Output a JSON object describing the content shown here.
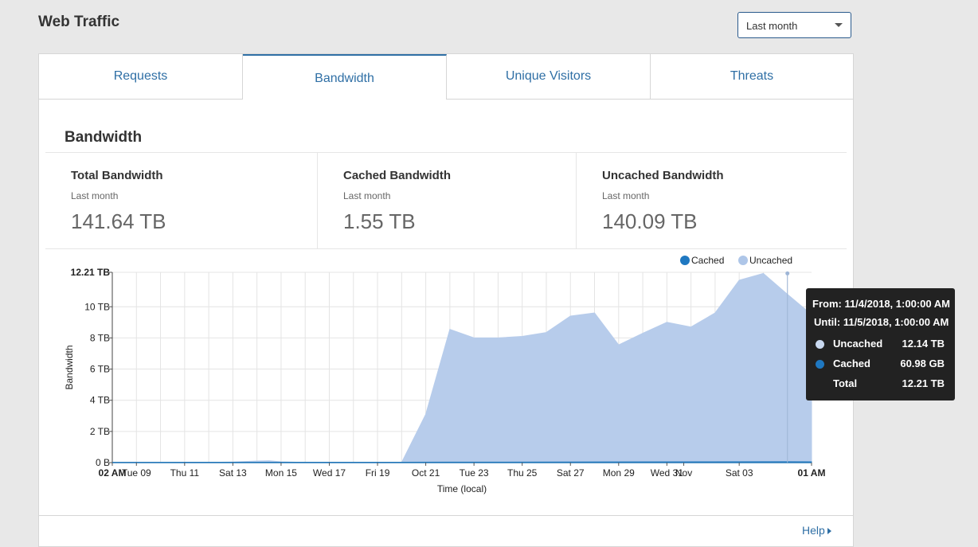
{
  "page": {
    "title": "Web Traffic"
  },
  "range_select": {
    "value": "Last month"
  },
  "tabs": [
    {
      "label": "Requests",
      "active": false
    },
    {
      "label": "Bandwidth",
      "active": true
    },
    {
      "label": "Unique Visitors",
      "active": false
    },
    {
      "label": "Threats",
      "active": false
    }
  ],
  "section": {
    "title": "Bandwidth"
  },
  "stats": [
    {
      "name": "Total Bandwidth",
      "period": "Last month",
      "value": "141.64 TB"
    },
    {
      "name": "Cached Bandwidth",
      "period": "Last month",
      "value": "1.55 TB"
    },
    {
      "name": "Uncached Bandwidth",
      "period": "Last month",
      "value": "140.09 TB"
    }
  ],
  "help": {
    "label": "Help"
  },
  "colors": {
    "accent": "#2f6fa5",
    "cached": "#1f78c1",
    "uncached": "#aec6e8",
    "uncached_fill": "#b7cceb"
  },
  "chart_data": {
    "type": "area",
    "xlabel": "Time (local)",
    "ylabel": "Bandwidth",
    "ylim": [
      0,
      12.21
    ],
    "y_unit": "TB",
    "y_ticks": [
      {
        "value": 0,
        "label": "0 B"
      },
      {
        "value": 2,
        "label": "2 TB"
      },
      {
        "value": 4,
        "label": "4 TB"
      },
      {
        "value": 6,
        "label": "6 TB"
      },
      {
        "value": 8,
        "label": "8 TB"
      },
      {
        "value": 10,
        "label": "10 TB"
      },
      {
        "value": 12.21,
        "label": "12.21 TB"
      }
    ],
    "x_tick_labels": [
      "02 AM",
      "Tue 09",
      "Thu 11",
      "Sat 13",
      "Mon 15",
      "Wed 17",
      "Fri 19",
      "Oct 21",
      "Tue 23",
      "Thu 25",
      "Sat 27",
      "Mon 29",
      "Wed 31",
      "Nov",
      "Sat 03",
      "01 AM"
    ],
    "x_tick_days": [
      0,
      1,
      3,
      5,
      7,
      9,
      11,
      13,
      15,
      17,
      19,
      21,
      23,
      23.7,
      26,
      29
    ],
    "x_tick_bold": [
      true,
      false,
      false,
      false,
      false,
      false,
      false,
      false,
      false,
      false,
      false,
      false,
      false,
      false,
      false,
      true
    ],
    "legend": {
      "position": "top-right",
      "items": [
        "Cached",
        "Uncached"
      ]
    },
    "grid": true,
    "series": [
      {
        "name": "Uncached",
        "x_days": [
          0,
          1,
          2,
          3,
          4,
          5,
          6,
          6.5,
          7,
          8,
          9,
          10,
          11,
          12,
          13,
          14,
          15,
          16,
          17,
          18,
          19,
          20,
          21,
          22,
          23,
          24,
          25,
          26,
          27,
          28,
          29
        ],
        "values": [
          0.01,
          0.01,
          0.01,
          0.01,
          0.01,
          0.04,
          0.1,
          0.12,
          0.05,
          0.01,
          0.01,
          0.01,
          0.01,
          0.01,
          3.1,
          8.55,
          8.0,
          8.0,
          8.1,
          8.35,
          9.4,
          9.6,
          7.55,
          8.3,
          9.0,
          8.7,
          9.6,
          11.7,
          12.14,
          10.8,
          9.5
        ]
      },
      {
        "name": "Cached",
        "x_days": [
          0,
          14,
          28,
          29
        ],
        "values": [
          0.02,
          0.03,
          0.06,
          0.05
        ]
      }
    ],
    "tooltip": {
      "from": "From: 11/4/2018, 1:00:00 AM",
      "until": "Until: 11/5/2018, 1:00:00 AM",
      "rows": [
        {
          "label": "Uncached",
          "value": "12.14 TB"
        },
        {
          "label": "Cached",
          "value": "60.98 GB"
        },
        {
          "label": "Total",
          "value": "12.21 TB"
        }
      ]
    }
  }
}
